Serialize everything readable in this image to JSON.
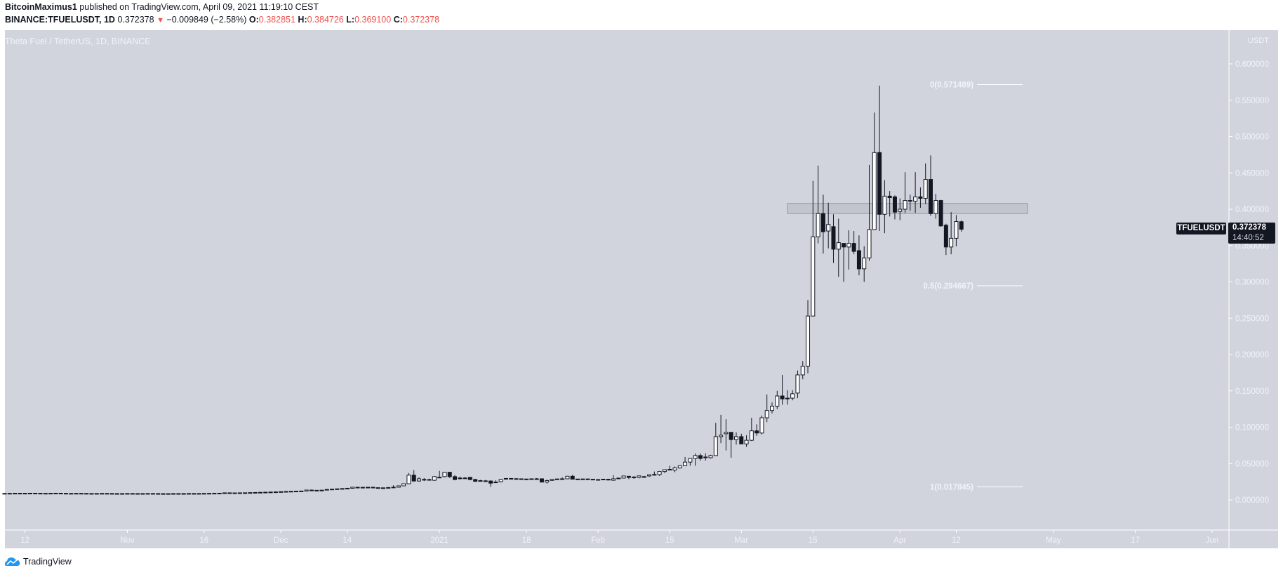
{
  "header": {
    "author": "BitcoinMaximus1",
    "published": " published on TradingView.com, April 09, 2021 11:19:10 CEST",
    "symbol": "BINANCE:TFUELUSDT, 1D",
    "last": "0.372378",
    "change": "−0.009849 (−2.58%)",
    "o_label": "O:",
    "o": "0.382851",
    "h_label": "H:",
    "h": "0.384726",
    "l_label": "L:",
    "l": "0.369100",
    "c_label": "C:",
    "c": "0.372378",
    "down_icon": "▼"
  },
  "pane": {
    "label": "Theta Fuel / TetherUS, 1D, BINANCE",
    "axis_currency": "USDT",
    "symbol_tag": "TFUELUSDT",
    "price_tag": "0.372378",
    "countdown": "14:40:52"
  },
  "footer": {
    "brand": "TradingView",
    "logo_icon": "tradingview-cloud-icon"
  },
  "colors": {
    "background": "#d1d4dc",
    "candle_up": "#ffffff",
    "candle_down": "#131722",
    "wick": "#131722",
    "axis_text": "#f0f3fa",
    "accent_red": "#ef5350"
  },
  "chart_data": {
    "type": "candlestick",
    "title": "Theta Fuel / TetherUS, 1D, BINANCE",
    "ylabel": "USDT",
    "ylim": [
      -0.02,
      0.62
    ],
    "y_ticks": [
      "0.600000",
      "0.550000",
      "0.500000",
      "0.450000",
      "0.400000",
      "0.350000",
      "0.300000",
      "0.250000",
      "0.200000",
      "0.150000",
      "0.100000",
      "0.050000",
      "0.000000"
    ],
    "x_ticks": [
      {
        "label": "12",
        "day": 4
      },
      {
        "label": "Nov",
        "day": 24
      },
      {
        "label": "16",
        "day": 39
      },
      {
        "label": "Dec",
        "day": 54
      },
      {
        "label": "14",
        "day": 67
      },
      {
        "label": "2021",
        "day": 85
      },
      {
        "label": "18",
        "day": 102
      },
      {
        "label": "Feb",
        "day": 116
      },
      {
        "label": "15",
        "day": 130
      },
      {
        "label": "Mar",
        "day": 144
      },
      {
        "label": "15",
        "day": 158
      },
      {
        "label": "Apr",
        "day": 175
      },
      {
        "label": "12",
        "day": 186
      },
      {
        "label": "May",
        "day": 205
      },
      {
        "label": "17",
        "day": 221
      },
      {
        "label": "Jun",
        "day": 236
      }
    ],
    "start_date": "2020-10-08",
    "ohlc_columns": [
      "open",
      "high",
      "low",
      "close"
    ],
    "ohlc": [
      [
        0.0088,
        0.0091,
        0.0086,
        0.0089
      ],
      [
        0.0089,
        0.0092,
        0.0087,
        0.009
      ],
      [
        0.009,
        0.0093,
        0.0088,
        0.0091
      ],
      [
        0.0091,
        0.0094,
        0.0088,
        0.009
      ],
      [
        0.009,
        0.0093,
        0.0088,
        0.0091
      ],
      [
        0.0091,
        0.0095,
        0.0089,
        0.0092
      ],
      [
        0.0092,
        0.0095,
        0.0089,
        0.0091
      ],
      [
        0.0091,
        0.0094,
        0.0088,
        0.009
      ],
      [
        0.009,
        0.0093,
        0.0087,
        0.0089
      ],
      [
        0.0089,
        0.0093,
        0.0087,
        0.0091
      ],
      [
        0.0091,
        0.0094,
        0.0089,
        0.0092
      ],
      [
        0.0092,
        0.0096,
        0.0089,
        0.009
      ],
      [
        0.009,
        0.0093,
        0.0087,
        0.0088
      ],
      [
        0.0088,
        0.0091,
        0.0086,
        0.0089
      ],
      [
        0.0089,
        0.0092,
        0.0087,
        0.009
      ],
      [
        0.009,
        0.0093,
        0.0088,
        0.0089
      ],
      [
        0.0089,
        0.0092,
        0.0087,
        0.0088
      ],
      [
        0.0088,
        0.0091,
        0.0085,
        0.0087
      ],
      [
        0.0087,
        0.009,
        0.0085,
        0.0088
      ],
      [
        0.0088,
        0.0091,
        0.0086,
        0.0089
      ],
      [
        0.0089,
        0.0092,
        0.0087,
        0.0088
      ],
      [
        0.0088,
        0.0091,
        0.0086,
        0.0087
      ],
      [
        0.0087,
        0.009,
        0.0085,
        0.0086
      ],
      [
        0.0086,
        0.0089,
        0.0084,
        0.0087
      ],
      [
        0.0087,
        0.009,
        0.0085,
        0.0088
      ],
      [
        0.0088,
        0.0091,
        0.0086,
        0.0087
      ],
      [
        0.0087,
        0.009,
        0.0085,
        0.0086
      ],
      [
        0.0086,
        0.0089,
        0.0084,
        0.0087
      ],
      [
        0.0087,
        0.009,
        0.0085,
        0.0088
      ],
      [
        0.0088,
        0.0091,
        0.0086,
        0.0087
      ],
      [
        0.0087,
        0.009,
        0.0085,
        0.0086
      ],
      [
        0.0086,
        0.0089,
        0.0084,
        0.0085
      ],
      [
        0.0085,
        0.0088,
        0.0083,
        0.0086
      ],
      [
        0.0086,
        0.0089,
        0.0084,
        0.0087
      ],
      [
        0.0087,
        0.009,
        0.0085,
        0.0086
      ],
      [
        0.0086,
        0.0089,
        0.0084,
        0.0087
      ],
      [
        0.0087,
        0.009,
        0.0085,
        0.0088
      ],
      [
        0.0088,
        0.0091,
        0.0086,
        0.0087
      ],
      [
        0.0087,
        0.009,
        0.0085,
        0.0088
      ],
      [
        0.0088,
        0.0091,
        0.0086,
        0.0089
      ],
      [
        0.0089,
        0.0092,
        0.0087,
        0.009
      ],
      [
        0.009,
        0.0093,
        0.0088,
        0.0091
      ],
      [
        0.0091,
        0.0094,
        0.0089,
        0.0092
      ],
      [
        0.0092,
        0.0098,
        0.009,
        0.0097
      ],
      [
        0.0097,
        0.0103,
        0.0094,
        0.0095
      ],
      [
        0.0095,
        0.0099,
        0.0093,
        0.0096
      ],
      [
        0.0096,
        0.0099,
        0.0094,
        0.0097
      ],
      [
        0.0097,
        0.01,
        0.0095,
        0.0098
      ],
      [
        0.0098,
        0.0102,
        0.0096,
        0.01
      ],
      [
        0.01,
        0.0104,
        0.0098,
        0.0102
      ],
      [
        0.0102,
        0.0106,
        0.01,
        0.0104
      ],
      [
        0.0104,
        0.0108,
        0.0102,
        0.0106
      ],
      [
        0.0106,
        0.011,
        0.0103,
        0.0108
      ],
      [
        0.0108,
        0.0112,
        0.0105,
        0.011
      ],
      [
        0.011,
        0.0115,
        0.0107,
        0.0113
      ],
      [
        0.0113,
        0.0118,
        0.011,
        0.0116
      ],
      [
        0.0116,
        0.012,
        0.0112,
        0.0118
      ],
      [
        0.0118,
        0.0122,
        0.0114,
        0.012
      ],
      [
        0.012,
        0.0125,
        0.0117,
        0.0122
      ],
      [
        0.0122,
        0.0138,
        0.012,
        0.0135
      ],
      [
        0.0135,
        0.0142,
        0.0127,
        0.013
      ],
      [
        0.013,
        0.0134,
        0.0126,
        0.0132
      ],
      [
        0.0132,
        0.0136,
        0.0129,
        0.0134
      ],
      [
        0.0134,
        0.0146,
        0.0131,
        0.0144
      ],
      [
        0.0144,
        0.015,
        0.014,
        0.0148
      ],
      [
        0.0148,
        0.0155,
        0.0144,
        0.0152
      ],
      [
        0.0152,
        0.0158,
        0.0148,
        0.0156
      ],
      [
        0.0156,
        0.0162,
        0.0151,
        0.016
      ],
      [
        0.016,
        0.0166,
        0.0156,
        0.0174
      ],
      [
        0.0174,
        0.0178,
        0.017,
        0.0173
      ],
      [
        0.0173,
        0.0177,
        0.0169,
        0.0172
      ],
      [
        0.0174,
        0.0177,
        0.0168,
        0.017
      ],
      [
        0.0174,
        0.0177,
        0.017,
        0.0171
      ],
      [
        0.0168,
        0.0171,
        0.0163,
        0.0165
      ],
      [
        0.0165,
        0.017,
        0.0162,
        0.0166
      ],
      [
        0.017,
        0.0172,
        0.0165,
        0.0166
      ],
      [
        0.0174,
        0.02,
        0.0172,
        0.0175
      ],
      [
        0.0174,
        0.0196,
        0.0172,
        0.0193
      ],
      [
        0.0193,
        0.0225,
        0.019,
        0.0222
      ],
      [
        0.0222,
        0.037,
        0.022,
        0.034
      ],
      [
        0.034,
        0.041,
        0.025,
        0.026
      ],
      [
        0.026,
        0.031,
        0.025,
        0.029
      ],
      [
        0.028,
        0.03,
        0.026,
        0.0282
      ],
      [
        0.028,
        0.029,
        0.0265,
        0.0272
      ],
      [
        0.027,
        0.033,
        0.026,
        0.032
      ],
      [
        0.031,
        0.04,
        0.03,
        0.0312
      ],
      [
        0.032,
        0.0385,
        0.031,
        0.038
      ],
      [
        0.038,
        0.0385,
        0.03,
        0.032
      ],
      [
        0.032,
        0.034,
        0.027,
        0.028
      ],
      [
        0.03,
        0.032,
        0.028,
        0.0301
      ],
      [
        0.03,
        0.0315,
        0.029,
        0.0301
      ],
      [
        0.031,
        0.0315,
        0.027,
        0.028
      ],
      [
        0.028,
        0.029,
        0.025,
        0.0255
      ],
      [
        0.0265,
        0.0275,
        0.0255,
        0.0264
      ],
      [
        0.0262,
        0.0275,
        0.025,
        0.026
      ],
      [
        0.026,
        0.0268,
        0.018,
        0.023
      ],
      [
        0.0245,
        0.027,
        0.023,
        0.0246
      ],
      [
        0.025,
        0.029,
        0.024,
        0.028
      ],
      [
        0.029,
        0.03,
        0.028,
        0.0295
      ],
      [
        0.0295,
        0.03,
        0.0285,
        0.029
      ],
      [
        0.029,
        0.0298,
        0.0283,
        0.0292
      ],
      [
        0.029,
        0.0295,
        0.0285,
        0.0287
      ],
      [
        0.0287,
        0.0293,
        0.0282,
        0.0285
      ],
      [
        0.0286,
        0.0295,
        0.028,
        0.029
      ],
      [
        0.029,
        0.03,
        0.0275,
        0.029
      ],
      [
        0.029,
        0.0296,
        0.024,
        0.0245
      ],
      [
        0.0245,
        0.028,
        0.0225,
        0.0265
      ],
      [
        0.0268,
        0.029,
        0.0262,
        0.0283
      ],
      [
        0.0285,
        0.0293,
        0.028,
        0.0288
      ],
      [
        0.0289,
        0.031,
        0.028,
        0.029
      ],
      [
        0.029,
        0.033,
        0.0285,
        0.0325
      ],
      [
        0.0325,
        0.0345,
        0.028,
        0.0285
      ],
      [
        0.0285,
        0.029,
        0.0275,
        0.0287
      ],
      [
        0.0287,
        0.0293,
        0.0282,
        0.0288
      ],
      [
        0.0288,
        0.0292,
        0.028,
        0.0284
      ],
      [
        0.0284,
        0.0288,
        0.0276,
        0.028
      ],
      [
        0.028,
        0.0285,
        0.0274,
        0.0278
      ],
      [
        0.0278,
        0.029,
        0.027,
        0.0285
      ],
      [
        0.0284,
        0.0284,
        0.027,
        0.0273
      ],
      [
        0.027,
        0.034,
        0.0264,
        0.029
      ],
      [
        0.03,
        0.0302,
        0.0292,
        0.0299
      ],
      [
        0.03,
        0.0331,
        0.0295,
        0.0329
      ],
      [
        0.0325,
        0.0327,
        0.0286,
        0.0309
      ],
      [
        0.0305,
        0.0325,
        0.029,
        0.0315
      ],
      [
        0.031,
        0.033,
        0.0295,
        0.033
      ],
      [
        0.032,
        0.033,
        0.0305,
        0.031
      ],
      [
        0.033,
        0.035,
        0.0315,
        0.0345
      ],
      [
        0.035,
        0.039,
        0.0335,
        0.0349
      ],
      [
        0.0349,
        0.037,
        0.033,
        0.039
      ],
      [
        0.039,
        0.042,
        0.037,
        0.0415
      ],
      [
        0.0415,
        0.047,
        0.041,
        0.042
      ],
      [
        0.041,
        0.046,
        0.038,
        0.044
      ],
      [
        0.044,
        0.047,
        0.043,
        0.047
      ],
      [
        0.047,
        0.059,
        0.0465,
        0.052
      ],
      [
        0.052,
        0.057,
        0.047,
        0.057
      ],
      [
        0.057,
        0.064,
        0.047,
        0.061
      ],
      [
        0.061,
        0.064,
        0.054,
        0.057
      ],
      [
        0.059,
        0.064,
        0.054,
        0.059
      ],
      [
        0.058,
        0.062,
        0.057,
        0.061
      ],
      [
        0.061,
        0.106,
        0.061,
        0.087
      ],
      [
        0.087,
        0.117,
        0.078,
        0.089
      ],
      [
        0.091,
        0.111,
        0.068,
        0.093
      ],
      [
        0.093,
        0.093,
        0.058,
        0.083
      ],
      [
        0.083,
        0.093,
        0.076,
        0.087
      ],
      [
        0.087,
        0.091,
        0.077,
        0.077
      ],
      [
        0.077,
        0.089,
        0.073,
        0.082
      ],
      [
        0.082,
        0.113,
        0.081,
        0.095
      ],
      [
        0.095,
        0.104,
        0.088,
        0.092
      ],
      [
        0.092,
        0.116,
        0.09,
        0.113
      ],
      [
        0.113,
        0.145,
        0.107,
        0.123
      ],
      [
        0.123,
        0.134,
        0.119,
        0.129
      ],
      [
        0.129,
        0.15,
        0.125,
        0.143
      ],
      [
        0.143,
        0.172,
        0.131,
        0.139
      ],
      [
        0.14,
        0.151,
        0.131,
        0.139
      ],
      [
        0.14,
        0.151,
        0.137,
        0.146
      ],
      [
        0.147,
        0.178,
        0.14,
        0.172
      ],
      [
        0.172,
        0.191,
        0.166,
        0.184
      ],
      [
        0.184,
        0.275,
        0.174,
        0.253
      ],
      [
        0.253,
        0.439,
        0.253,
        0.362
      ],
      [
        0.362,
        0.46,
        0.353,
        0.394
      ],
      [
        0.394,
        0.42,
        0.339,
        0.369
      ],
      [
        0.37,
        0.409,
        0.346,
        0.379
      ],
      [
        0.376,
        0.393,
        0.326,
        0.345
      ],
      [
        0.345,
        0.387,
        0.307,
        0.354
      ],
      [
        0.353,
        0.353,
        0.3,
        0.348
      ],
      [
        0.348,
        0.371,
        0.317,
        0.353
      ],
      [
        0.353,
        0.37,
        0.338,
        0.342
      ],
      [
        0.343,
        0.364,
        0.309,
        0.318
      ],
      [
        0.318,
        0.349,
        0.3,
        0.333
      ],
      [
        0.333,
        0.461,
        0.329,
        0.372
      ],
      [
        0.372,
        0.533,
        0.372,
        0.478
      ],
      [
        0.478,
        0.57,
        0.37,
        0.393
      ],
      [
        0.393,
        0.44,
        0.367,
        0.418
      ],
      [
        0.418,
        0.425,
        0.39,
        0.416
      ],
      [
        0.417,
        0.419,
        0.386,
        0.396
      ],
      [
        0.397,
        0.415,
        0.385,
        0.4
      ],
      [
        0.4,
        0.451,
        0.395,
        0.412
      ],
      [
        0.412,
        0.42,
        0.398,
        0.411
      ],
      [
        0.411,
        0.451,
        0.395,
        0.417
      ],
      [
        0.417,
        0.43,
        0.402,
        0.415
      ],
      [
        0.415,
        0.463,
        0.407,
        0.441
      ],
      [
        0.441,
        0.474,
        0.391,
        0.394
      ],
      [
        0.394,
        0.421,
        0.387,
        0.412
      ],
      [
        0.412,
        0.413,
        0.376,
        0.377
      ],
      [
        0.378,
        0.38,
        0.337,
        0.348
      ],
      [
        0.348,
        0.396,
        0.338,
        0.36
      ],
      [
        0.36,
        0.392,
        0.349,
        0.383
      ],
      [
        0.3828,
        0.3847,
        0.3691,
        0.3724
      ]
    ],
    "annotations": {
      "fib_levels": [
        {
          "label": "0(0.571489)",
          "price": 0.571489
        },
        {
          "label": "0.5(0.294667)",
          "price": 0.294667
        },
        {
          "label": "1(0.017845)",
          "price": 0.017845
        }
      ],
      "resistance_zone": {
        "low": 0.394,
        "high": 0.408,
        "from_day": 151,
        "to_day": 198
      }
    },
    "last_price": 0.372378
  }
}
